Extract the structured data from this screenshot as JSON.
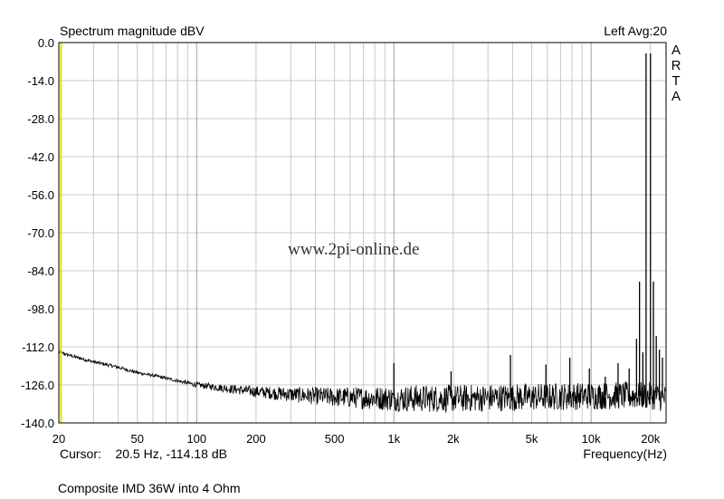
{
  "chart_data": {
    "type": "line",
    "title": "Spectrum magnitude dBV",
    "channel_label": "Left  Avg:20",
    "brand_letters": [
      "A",
      "R",
      "T",
      "A"
    ],
    "watermark": "www.2pi-online.de",
    "cursor_readout": "Cursor:    20.5 Hz, -114.18 dB",
    "caption": "Composite IMD 36W into 4 Ohm",
    "xlabel": "Frequency(Hz)",
    "ylabel": "",
    "x_scale": "log",
    "xlim": [
      20,
      24000
    ],
    "ylim": [
      -140,
      0
    ],
    "y_ticks": [
      0,
      -14,
      -28,
      -42,
      -56,
      -70,
      -84,
      -98,
      -112,
      -126,
      -140
    ],
    "y_tick_labels": [
      "0.0",
      "-14.0",
      "-28.0",
      "-42.0",
      "-56.0",
      "-70.0",
      "-84.0",
      "-98.0",
      "-112.0",
      "-126.0",
      "-140.0"
    ],
    "x_ticks": [
      20,
      50,
      100,
      200,
      500,
      1000,
      2000,
      5000,
      10000,
      20000
    ],
    "x_tick_labels": [
      "20",
      "50",
      "100",
      "200",
      "500",
      "1k",
      "2k",
      "5k",
      "10k",
      "20k"
    ],
    "grid": true,
    "colors": {
      "trace": "#000000",
      "grid": "#c8c8c8",
      "major_grid": "#a0a0a0",
      "cursor": "#e8e000"
    },
    "noise_floor": [
      [
        20,
        -114
      ],
      [
        25,
        -116
      ],
      [
        30,
        -117.5
      ],
      [
        40,
        -119.5
      ],
      [
        50,
        -121.5
      ],
      [
        60,
        -122.5
      ],
      [
        80,
        -124.5
      ],
      [
        100,
        -126
      ],
      [
        150,
        -127.5
      ],
      [
        200,
        -128.5
      ],
      [
        300,
        -129.5
      ],
      [
        500,
        -130.5
      ],
      [
        1000,
        -131
      ],
      [
        2000,
        -131
      ],
      [
        5000,
        -130.5
      ],
      [
        10000,
        -130
      ],
      [
        20000,
        -130
      ],
      [
        24000,
        -131
      ]
    ],
    "peaks": [
      {
        "f": 1000,
        "db": -118
      },
      {
        "f": 1950,
        "db": -121
      },
      {
        "f": 3900,
        "db": -115
      },
      {
        "f": 5900,
        "db": -118.5
      },
      {
        "f": 7800,
        "db": -116
      },
      {
        "f": 9800,
        "db": -120
      },
      {
        "f": 11800,
        "db": -123
      },
      {
        "f": 13700,
        "db": -118
      },
      {
        "f": 15600,
        "db": -120
      },
      {
        "f": 17000,
        "db": -109
      },
      {
        "f": 17600,
        "db": -88
      },
      {
        "f": 18300,
        "db": -114
      },
      {
        "f": 19000,
        "db": -4
      },
      {
        "f": 20000,
        "db": -4
      },
      {
        "f": 20700,
        "db": -88
      },
      {
        "f": 21400,
        "db": -108
      },
      {
        "f": 22200,
        "db": -113
      },
      {
        "f": 23000,
        "db": -116
      }
    ],
    "cursor": {
      "f": 20.5,
      "db": -114.18
    }
  }
}
